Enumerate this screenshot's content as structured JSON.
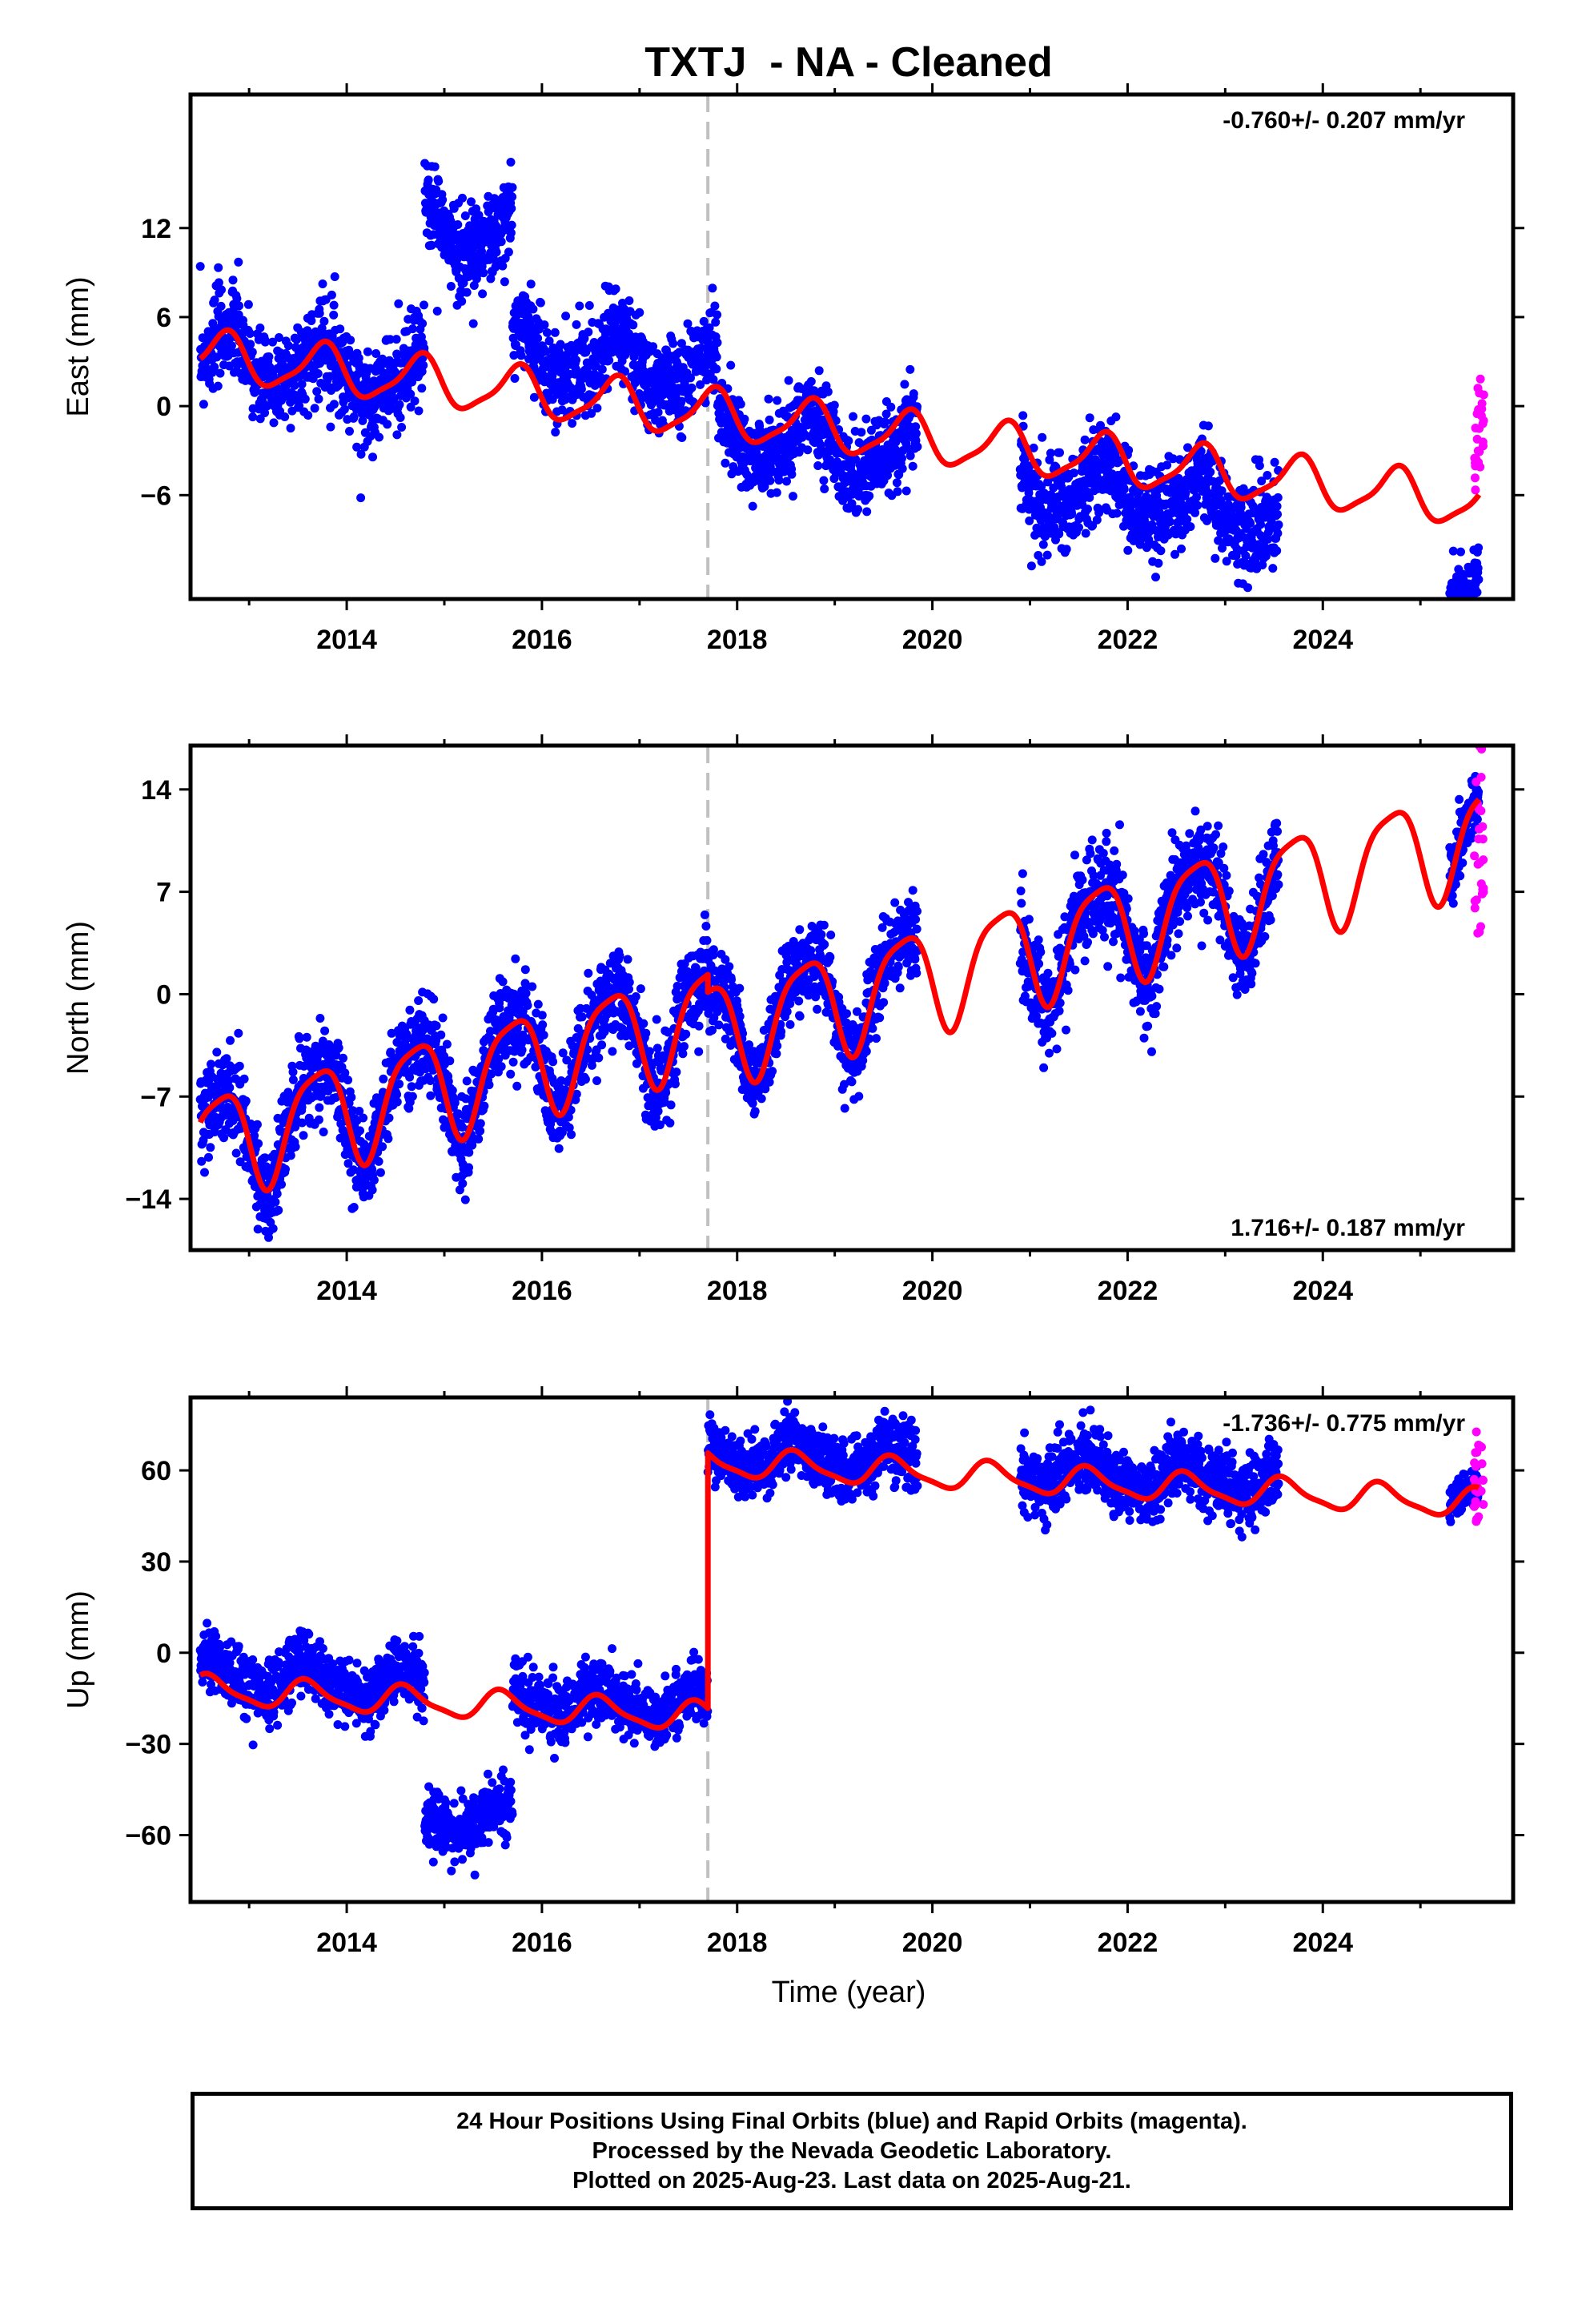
{
  "title": "TXTJ  - NA - Cleaned",
  "xlabel": "Time (year)",
  "footer": [
    "24 Hour Positions Using Final Orbits (blue) and Rapid Orbits (magenta).",
    "Processed by the Nevada Geodetic Laboratory.",
    "Plotted on 2025-Aug-23. Last data on 2025-Aug-21."
  ],
  "colors": {
    "final_orbits": "#0000ff",
    "rapid_orbits": "#ff00ff",
    "model": "#ff0000",
    "break_line": "#c0c0c0"
  },
  "chart_data": [
    {
      "type": "scatter",
      "component": "east",
      "ylabel": "East (mm)",
      "rate": "-0.760+/- 0.207 mm/yr",
      "rate_position": "top-right",
      "xlim": [
        2012.4,
        2025.95
      ],
      "ylim": [
        -13,
        21
      ],
      "xticks": [
        2014,
        2016,
        2018,
        2020,
        2022,
        2024
      ],
      "yticks": [
        -6,
        0,
        6,
        12
      ],
      "break_epoch": 2017.7,
      "model": {
        "slope": -0.76,
        "intercept": 3.5,
        "step": 0,
        "season_amp": 1.6,
        "season_phase": -0.5,
        "semiannual_amp": 0.4,
        "semiannual_phase": 0.3
      },
      "segments": [
        {
          "x": [
            2012.5,
            2014.8
          ],
          "offset": 0,
          "scatter": 1.6
        },
        {
          "x": [
            2014.8,
            2015.7
          ],
          "offset": 10.5,
          "scatter": 1.6
        },
        {
          "x": [
            2015.7,
            2017.8
          ],
          "offset": 2.8,
          "scatter": 1.5
        },
        {
          "x": [
            2017.8,
            2019.85
          ],
          "offset": -1.3,
          "scatter": 1.4
        },
        {
          "x": [
            2020.9,
            2023.55
          ],
          "offset": -2.2,
          "scatter": 1.6
        },
        {
          "x": [
            2025.3,
            2025.6
          ],
          "offset": -5.4,
          "scatter": 1.0
        }
      ],
      "rapid": {
        "x": [
          2025.55,
          2025.65
        ],
        "y": [
          -6,
          2
        ]
      }
    },
    {
      "type": "scatter",
      "component": "north",
      "ylabel": "North (mm)",
      "rate": "1.716+/- 0.187 mm/yr",
      "rate_position": "bottom-right",
      "xlim": [
        2012.4,
        2025.95
      ],
      "ylim": [
        -17.5,
        17
      ],
      "xticks": [
        2014,
        2016,
        2018,
        2020,
        2022,
        2024
      ],
      "yticks": [
        -14,
        -7,
        0,
        7,
        14
      ],
      "break_epoch": 2017.7,
      "model": {
        "slope": 1.716,
        "intercept": -10.5,
        "step": -1.2,
        "season_amp": 3.5,
        "season_phase": 0.55,
        "semiannual_amp": 0.8,
        "semiannual_phase": 0.2
      },
      "segments": [
        {
          "x": [
            2012.5,
            2014.3
          ],
          "offset": 0,
          "scatter": 1.5
        },
        {
          "x": [
            2014.3,
            2017.8
          ],
          "offset": 0,
          "scatter": 1.6
        },
        {
          "x": [
            2017.8,
            2019.85
          ],
          "offset": 0,
          "scatter": 1.4
        },
        {
          "x": [
            2020.9,
            2023.55
          ],
          "offset": 0,
          "scatter": 1.6
        },
        {
          "x": [
            2025.3,
            2025.6
          ],
          "offset": 0,
          "scatter": 1.3
        }
      ],
      "rapid": {
        "x": [
          2025.55,
          2025.65
        ],
        "y": [
          4,
          17
        ]
      }
    },
    {
      "type": "scatter",
      "component": "up",
      "ylabel": "Up (mm)",
      "rate": "-1.736+/- 0.775 mm/yr",
      "rate_position": "top-right",
      "xlim": [
        2012.4,
        2025.95
      ],
      "ylim": [
        -82,
        84
      ],
      "xticks": [
        2014,
        2016,
        2018,
        2020,
        2022,
        2024
      ],
      "yticks": [
        -60,
        -30,
        0,
        30,
        60
      ],
      "break_epoch": 2017.7,
      "model": {
        "slope": -1.736,
        "intercept": -12,
        "step": 84,
        "season_amp": 4.5,
        "season_phase": 0.65,
        "semiannual_amp": 1.2,
        "semiannual_phase": 0.1
      },
      "segments": [
        {
          "x": [
            2012.5,
            2014.8
          ],
          "offset": 5,
          "scatter": 5
        },
        {
          "x": [
            2014.8,
            2015.7
          ],
          "offset": -38,
          "scatter": 5
        },
        {
          "x": [
            2015.7,
            2017.8
          ],
          "offset": 3,
          "scatter": 5
        },
        {
          "x": [
            2017.8,
            2019.85
          ],
          "offset": 3,
          "scatter": 5
        },
        {
          "x": [
            2020.9,
            2023.55
          ],
          "offset": 3,
          "scatter": 5.5
        },
        {
          "x": [
            2025.3,
            2025.6
          ],
          "offset": 0,
          "scatter": 3
        }
      ],
      "rapid": {
        "x": [
          2025.55,
          2025.65
        ],
        "y": [
          42,
          74
        ]
      }
    }
  ]
}
